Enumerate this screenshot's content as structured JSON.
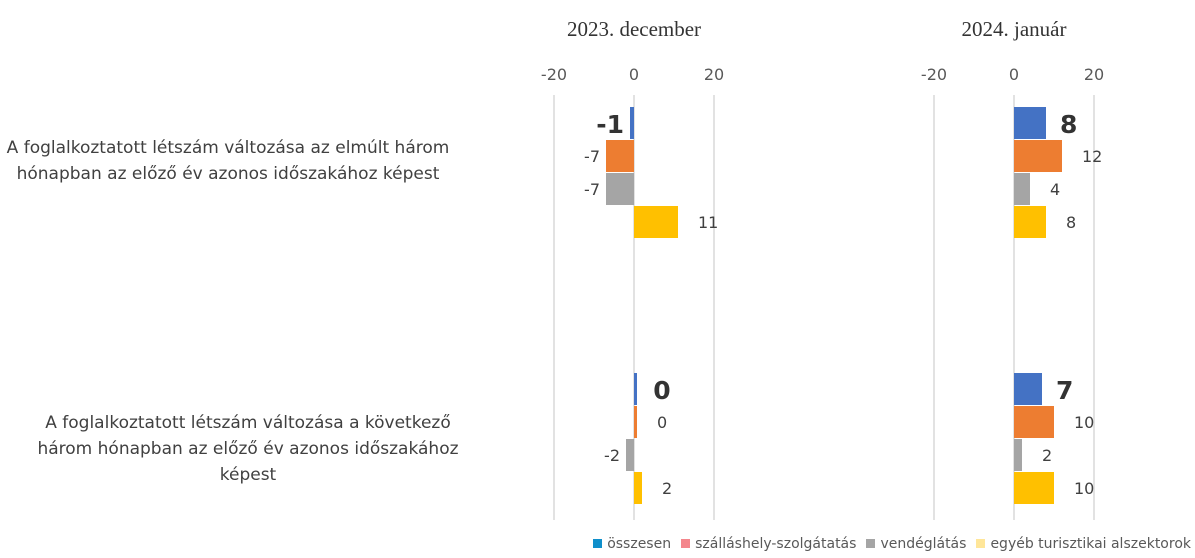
{
  "chart_data": {
    "type": "bar",
    "orientation": "horizontal",
    "panels": [
      {
        "title": "2023. december",
        "xlim": [
          -20,
          20
        ],
        "xticks": [
          -20,
          0,
          20
        ],
        "series_values": {
          "összesen": [
            -1,
            0
          ],
          "szálláshely-szolgátatás": [
            -7,
            0
          ],
          "vendéglátás": [
            -7,
            -2
          ],
          "egyéb turisztikai alszektorok": [
            11,
            2
          ]
        }
      },
      {
        "title": "2024. január",
        "xlim": [
          -20,
          20
        ],
        "xticks": [
          -20,
          0,
          20
        ],
        "series_values": {
          "összesen": [
            8,
            7
          ],
          "szálláshely-szolgátatás": [
            12,
            10
          ],
          "vendéglátás": [
            4,
            2
          ],
          "egyéb turisztikai alszektorok": [
            8,
            10
          ]
        }
      }
    ],
    "categories": [
      "A foglalkoztatott létszám változása az elmúlt három hónapban az előző év azonos időszakához képest",
      "A foglalkoztatott létszám változása a következő három hónapban az előző év azonos időszakához képest"
    ],
    "series": [
      {
        "name": "összesen",
        "color": "#4472C4",
        "legend_color": "#0F8FCB"
      },
      {
        "name": "szálláshely-szolgátatás",
        "color": "#ED7D31",
        "legend_color": "#F4868C"
      },
      {
        "name": "vendéglátás",
        "color": "#A5A5A5",
        "legend_color": "#A5A5A5"
      },
      {
        "name": "egyéb turisztikai alszektorok",
        "color": "#FFC000",
        "legend_color": "#FFE699"
      }
    ],
    "grid": true,
    "legend": "bottom-right"
  }
}
